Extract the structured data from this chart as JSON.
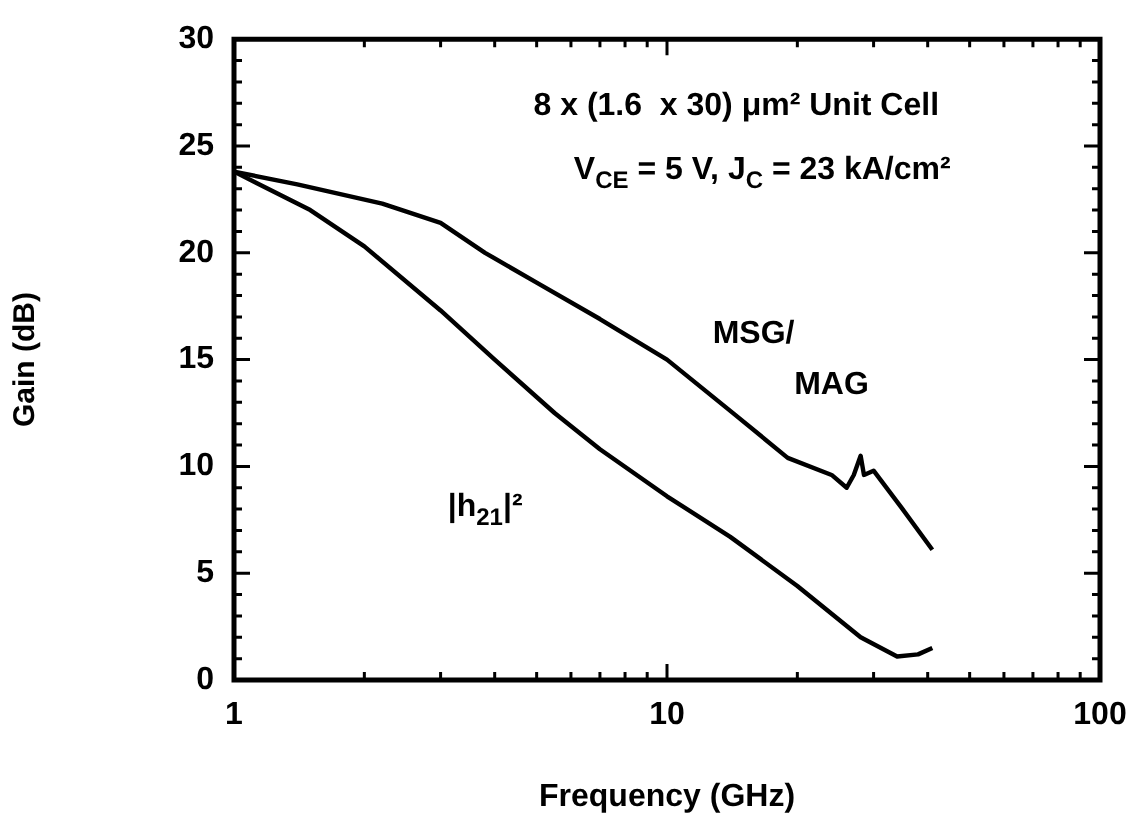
{
  "chart_data": {
    "type": "line",
    "xlabel": "Frequency (GHz)",
    "ylabel": "Gain (dB)",
    "log": "x",
    "legend": false,
    "grid": false,
    "marker": "none",
    "line_style": "solid",
    "annotations": [
      "8 x (1.6  x 30) μm² Unit Cell",
      "V$_{CE}$ = 5 V, J$_{C}$ = 23 kA/cm²"
    ],
    "xlim": [
      1,
      100
    ],
    "ylim": [
      0,
      30
    ],
    "xticks": [
      1,
      {
        "value": 2,
        "label": null
      },
      {
        "value": 3,
        "label": null
      },
      {
        "value": 4,
        "label": null
      },
      {
        "value": 5,
        "label": null
      },
      {
        "value": 6,
        "label": null
      },
      {
        "value": 7,
        "label": null
      },
      {
        "value": 8,
        "label": null
      },
      {
        "value": 9,
        "label": null
      },
      10,
      {
        "value": 20,
        "label": null
      },
      {
        "value": 30,
        "label": null
      },
      {
        "value": 40,
        "label": null
      },
      {
        "value": 50,
        "label": null
      },
      {
        "value": 60,
        "label": null
      },
      {
        "value": 70,
        "label": null
      },
      {
        "value": 80,
        "label": null
      },
      {
        "value": 90,
        "label": null
      },
      100
    ],
    "yticks": [
      0,
      {
        "value": 1,
        "label": null
      },
      {
        "value": 2,
        "label": null
      },
      {
        "value": 3,
        "label": null
      },
      {
        "value": 4,
        "label": null
      },
      5,
      {
        "value": 6,
        "label": null
      },
      {
        "value": 7,
        "label": null
      },
      {
        "value": 8,
        "label": null
      },
      {
        "value": 9,
        "label": null
      },
      10,
      {
        "value": 11,
        "label": null
      },
      {
        "value": 12,
        "label": null
      },
      {
        "value": 13,
        "label": null
      },
      {
        "value": 14,
        "label": null
      },
      15,
      {
        "value": 16,
        "label": null
      },
      {
        "value": 17,
        "label": null
      },
      {
        "value": 18,
        "label": null
      },
      {
        "value": 19,
        "label": null
      },
      20,
      {
        "value": 21,
        "label": null
      },
      {
        "value": 22,
        "label": null
      },
      {
        "value": 23,
        "label": null
      },
      {
        "value": 24,
        "label": null
      },
      25,
      {
        "value": 26,
        "label": null
      },
      {
        "value": 27,
        "label": null
      },
      {
        "value": 28,
        "label": null
      },
      {
        "value": 29,
        "label": null
      },
      30
    ],
    "series": [
      {
        "name": "MSG/MAG",
        "color": "#000000",
        "x": [
          1,
          1.4,
          2.2,
          3,
          3.8,
          5,
          7,
          10,
          14,
          19,
          24,
          26,
          27,
          28,
          28.5,
          30,
          35,
          41
        ],
        "values": [
          23.8,
          23.2,
          22.3,
          21.4,
          20,
          18.6,
          16.9,
          15,
          12.6,
          10.4,
          9.6,
          9,
          9.6,
          10.5,
          9.6,
          9.8,
          8,
          6.1
        ]
      },
      {
        "name": "|h$_{21}$|²",
        "color": "#000000",
        "x": [
          1,
          1.5,
          2,
          3,
          4,
          5.5,
          7,
          10,
          14,
          20,
          28,
          34,
          38,
          41
        ],
        "values": [
          23.8,
          22,
          20.3,
          17.3,
          15,
          12.5,
          10.8,
          8.6,
          6.7,
          4.4,
          2,
          1.1,
          1.2,
          1.5
        ]
      }
    ]
  }
}
